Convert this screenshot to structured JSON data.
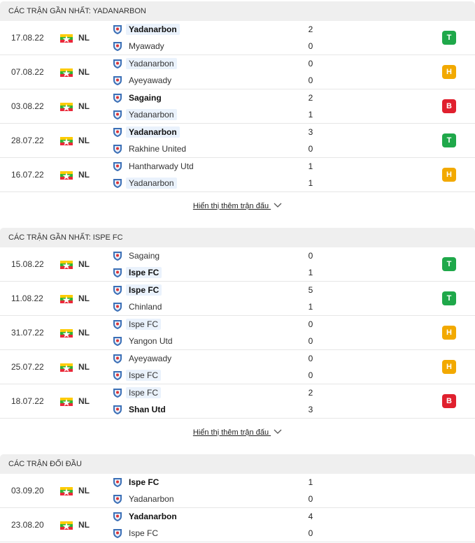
{
  "sections": [
    {
      "title": "CÁC TRẬN GẦN NHẤT: YADANARBON",
      "highlight": "Yadanarbon",
      "more": "Hiển thị thêm trận đấu",
      "matches": [
        {
          "date": "17.08.22",
          "league": "NL",
          "home": {
            "name": "Yadanarbon",
            "score": "2"
          },
          "away": {
            "name": "Myawady",
            "score": "0"
          },
          "result": "T"
        },
        {
          "date": "07.08.22",
          "league": "NL",
          "home": {
            "name": "Yadanarbon",
            "score": "0"
          },
          "away": {
            "name": "Ayeyawady",
            "score": "0"
          },
          "result": "H"
        },
        {
          "date": "03.08.22",
          "league": "NL",
          "home": {
            "name": "Sagaing",
            "score": "2"
          },
          "away": {
            "name": "Yadanarbon",
            "score": "1"
          },
          "result": "B"
        },
        {
          "date": "28.07.22",
          "league": "NL",
          "home": {
            "name": "Yadanarbon",
            "score": "3"
          },
          "away": {
            "name": "Rakhine United",
            "score": "0"
          },
          "result": "T"
        },
        {
          "date": "16.07.22",
          "league": "NL",
          "home": {
            "name": "Hantharwady Utd",
            "score": "1"
          },
          "away": {
            "name": "Yadanarbon",
            "score": "1"
          },
          "result": "H"
        }
      ]
    },
    {
      "title": "CÁC TRẬN GẦN NHẤT: ISPE FC",
      "highlight": "Ispe FC",
      "more": "Hiển thị thêm trận đấu",
      "matches": [
        {
          "date": "15.08.22",
          "league": "NL",
          "home": {
            "name": "Sagaing",
            "score": "0"
          },
          "away": {
            "name": "Ispe FC",
            "score": "1"
          },
          "result": "T"
        },
        {
          "date": "11.08.22",
          "league": "NL",
          "home": {
            "name": "Ispe FC",
            "score": "5"
          },
          "away": {
            "name": "Chinland",
            "score": "1"
          },
          "result": "T"
        },
        {
          "date": "31.07.22",
          "league": "NL",
          "home": {
            "name": "Ispe FC",
            "score": "0"
          },
          "away": {
            "name": "Yangon Utd",
            "score": "0"
          },
          "result": "H"
        },
        {
          "date": "25.07.22",
          "league": "NL",
          "home": {
            "name": "Ayeyawady",
            "score": "0"
          },
          "away": {
            "name": "Ispe FC",
            "score": "0"
          },
          "result": "H"
        },
        {
          "date": "18.07.22",
          "league": "NL",
          "home": {
            "name": "Ispe FC",
            "score": "2"
          },
          "away": {
            "name": "Shan Utd",
            "score": "3"
          },
          "result": "B"
        }
      ]
    },
    {
      "title": "CÁC TRẬN ĐỐI ĐẦU",
      "matches": [
        {
          "date": "03.09.20",
          "league": "NL",
          "home": {
            "name": "Ispe FC",
            "score": "1"
          },
          "away": {
            "name": "Yadanarbon",
            "score": "0"
          }
        },
        {
          "date": "23.08.20",
          "league": "NL",
          "home": {
            "name": "Yadanarbon",
            "score": "4"
          },
          "away": {
            "name": "Ispe FC",
            "score": "0"
          }
        }
      ]
    }
  ]
}
